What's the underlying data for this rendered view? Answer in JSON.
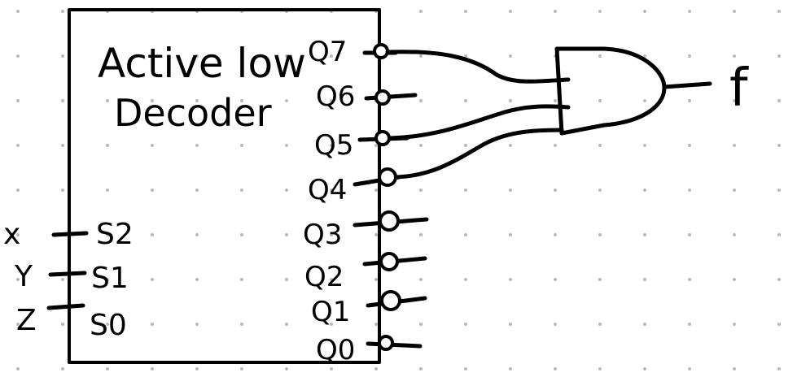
{
  "diagram": {
    "block_title_line1": "Active low",
    "block_title_line2": "Decoder",
    "inputs": [
      {
        "signal": "x",
        "pin": "S2"
      },
      {
        "signal": "Y",
        "pin": "S1"
      },
      {
        "signal": "Z",
        "pin": "S0"
      }
    ],
    "outputs": [
      "Q7",
      "Q6",
      "Q5",
      "Q4",
      "Q3",
      "Q2",
      "Q1",
      "Q0"
    ],
    "gate": {
      "type": "AND",
      "inputs_from": [
        "Q7",
        "Q5",
        "Q4"
      ],
      "output_label": "f"
    }
  }
}
